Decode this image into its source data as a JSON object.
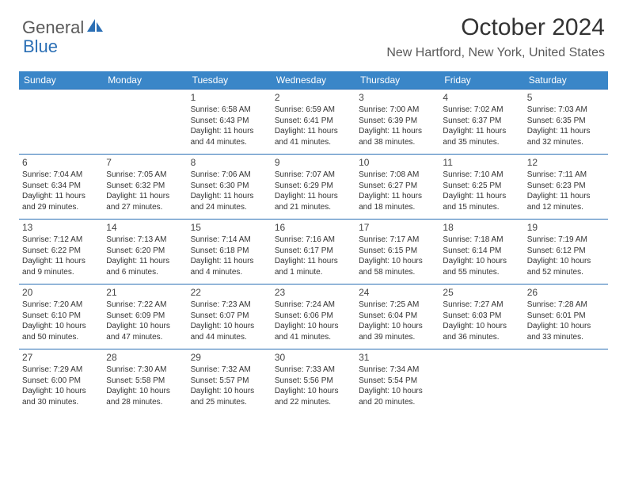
{
  "brand": {
    "part1": "General",
    "part2": "Blue"
  },
  "title": "October 2024",
  "location": "New Hartford, New York, United States",
  "colors": {
    "header_bg": "#3a86c8",
    "header_text": "#ffffff",
    "row_border": "#2b6fb5",
    "title_color": "#333333",
    "subtitle_color": "#5a5a5a",
    "body_text": "#333333",
    "page_bg": "#ffffff",
    "logo_gray": "#5a5a5a",
    "logo_blue": "#2b6fb5"
  },
  "typography": {
    "title_fontsize": 30,
    "subtitle_fontsize": 16,
    "header_fontsize": 12,
    "daynum_fontsize": 12,
    "info_fontsize": 10,
    "logo_fontsize": 22
  },
  "layout": {
    "columns": 7,
    "rows": 5
  },
  "weekdays": [
    "Sunday",
    "Monday",
    "Tuesday",
    "Wednesday",
    "Thursday",
    "Friday",
    "Saturday"
  ],
  "cells": [
    [
      null,
      null,
      {
        "day": "1",
        "sunrise": "Sunrise: 6:58 AM",
        "sunset": "Sunset: 6:43 PM",
        "daylight": "Daylight: 11 hours and 44 minutes."
      },
      {
        "day": "2",
        "sunrise": "Sunrise: 6:59 AM",
        "sunset": "Sunset: 6:41 PM",
        "daylight": "Daylight: 11 hours and 41 minutes."
      },
      {
        "day": "3",
        "sunrise": "Sunrise: 7:00 AM",
        "sunset": "Sunset: 6:39 PM",
        "daylight": "Daylight: 11 hours and 38 minutes."
      },
      {
        "day": "4",
        "sunrise": "Sunrise: 7:02 AM",
        "sunset": "Sunset: 6:37 PM",
        "daylight": "Daylight: 11 hours and 35 minutes."
      },
      {
        "day": "5",
        "sunrise": "Sunrise: 7:03 AM",
        "sunset": "Sunset: 6:35 PM",
        "daylight": "Daylight: 11 hours and 32 minutes."
      }
    ],
    [
      {
        "day": "6",
        "sunrise": "Sunrise: 7:04 AM",
        "sunset": "Sunset: 6:34 PM",
        "daylight": "Daylight: 11 hours and 29 minutes."
      },
      {
        "day": "7",
        "sunrise": "Sunrise: 7:05 AM",
        "sunset": "Sunset: 6:32 PM",
        "daylight": "Daylight: 11 hours and 27 minutes."
      },
      {
        "day": "8",
        "sunrise": "Sunrise: 7:06 AM",
        "sunset": "Sunset: 6:30 PM",
        "daylight": "Daylight: 11 hours and 24 minutes."
      },
      {
        "day": "9",
        "sunrise": "Sunrise: 7:07 AM",
        "sunset": "Sunset: 6:29 PM",
        "daylight": "Daylight: 11 hours and 21 minutes."
      },
      {
        "day": "10",
        "sunrise": "Sunrise: 7:08 AM",
        "sunset": "Sunset: 6:27 PM",
        "daylight": "Daylight: 11 hours and 18 minutes."
      },
      {
        "day": "11",
        "sunrise": "Sunrise: 7:10 AM",
        "sunset": "Sunset: 6:25 PM",
        "daylight": "Daylight: 11 hours and 15 minutes."
      },
      {
        "day": "12",
        "sunrise": "Sunrise: 7:11 AM",
        "sunset": "Sunset: 6:23 PM",
        "daylight": "Daylight: 11 hours and 12 minutes."
      }
    ],
    [
      {
        "day": "13",
        "sunrise": "Sunrise: 7:12 AM",
        "sunset": "Sunset: 6:22 PM",
        "daylight": "Daylight: 11 hours and 9 minutes."
      },
      {
        "day": "14",
        "sunrise": "Sunrise: 7:13 AM",
        "sunset": "Sunset: 6:20 PM",
        "daylight": "Daylight: 11 hours and 6 minutes."
      },
      {
        "day": "15",
        "sunrise": "Sunrise: 7:14 AM",
        "sunset": "Sunset: 6:18 PM",
        "daylight": "Daylight: 11 hours and 4 minutes."
      },
      {
        "day": "16",
        "sunrise": "Sunrise: 7:16 AM",
        "sunset": "Sunset: 6:17 PM",
        "daylight": "Daylight: 11 hours and 1 minute."
      },
      {
        "day": "17",
        "sunrise": "Sunrise: 7:17 AM",
        "sunset": "Sunset: 6:15 PM",
        "daylight": "Daylight: 10 hours and 58 minutes."
      },
      {
        "day": "18",
        "sunrise": "Sunrise: 7:18 AM",
        "sunset": "Sunset: 6:14 PM",
        "daylight": "Daylight: 10 hours and 55 minutes."
      },
      {
        "day": "19",
        "sunrise": "Sunrise: 7:19 AM",
        "sunset": "Sunset: 6:12 PM",
        "daylight": "Daylight: 10 hours and 52 minutes."
      }
    ],
    [
      {
        "day": "20",
        "sunrise": "Sunrise: 7:20 AM",
        "sunset": "Sunset: 6:10 PM",
        "daylight": "Daylight: 10 hours and 50 minutes."
      },
      {
        "day": "21",
        "sunrise": "Sunrise: 7:22 AM",
        "sunset": "Sunset: 6:09 PM",
        "daylight": "Daylight: 10 hours and 47 minutes."
      },
      {
        "day": "22",
        "sunrise": "Sunrise: 7:23 AM",
        "sunset": "Sunset: 6:07 PM",
        "daylight": "Daylight: 10 hours and 44 minutes."
      },
      {
        "day": "23",
        "sunrise": "Sunrise: 7:24 AM",
        "sunset": "Sunset: 6:06 PM",
        "daylight": "Daylight: 10 hours and 41 minutes."
      },
      {
        "day": "24",
        "sunrise": "Sunrise: 7:25 AM",
        "sunset": "Sunset: 6:04 PM",
        "daylight": "Daylight: 10 hours and 39 minutes."
      },
      {
        "day": "25",
        "sunrise": "Sunrise: 7:27 AM",
        "sunset": "Sunset: 6:03 PM",
        "daylight": "Daylight: 10 hours and 36 minutes."
      },
      {
        "day": "26",
        "sunrise": "Sunrise: 7:28 AM",
        "sunset": "Sunset: 6:01 PM",
        "daylight": "Daylight: 10 hours and 33 minutes."
      }
    ],
    [
      {
        "day": "27",
        "sunrise": "Sunrise: 7:29 AM",
        "sunset": "Sunset: 6:00 PM",
        "daylight": "Daylight: 10 hours and 30 minutes."
      },
      {
        "day": "28",
        "sunrise": "Sunrise: 7:30 AM",
        "sunset": "Sunset: 5:58 PM",
        "daylight": "Daylight: 10 hours and 28 minutes."
      },
      {
        "day": "29",
        "sunrise": "Sunrise: 7:32 AM",
        "sunset": "Sunset: 5:57 PM",
        "daylight": "Daylight: 10 hours and 25 minutes."
      },
      {
        "day": "30",
        "sunrise": "Sunrise: 7:33 AM",
        "sunset": "Sunset: 5:56 PM",
        "daylight": "Daylight: 10 hours and 22 minutes."
      },
      {
        "day": "31",
        "sunrise": "Sunrise: 7:34 AM",
        "sunset": "Sunset: 5:54 PM",
        "daylight": "Daylight: 10 hours and 20 minutes."
      },
      null,
      null
    ]
  ]
}
